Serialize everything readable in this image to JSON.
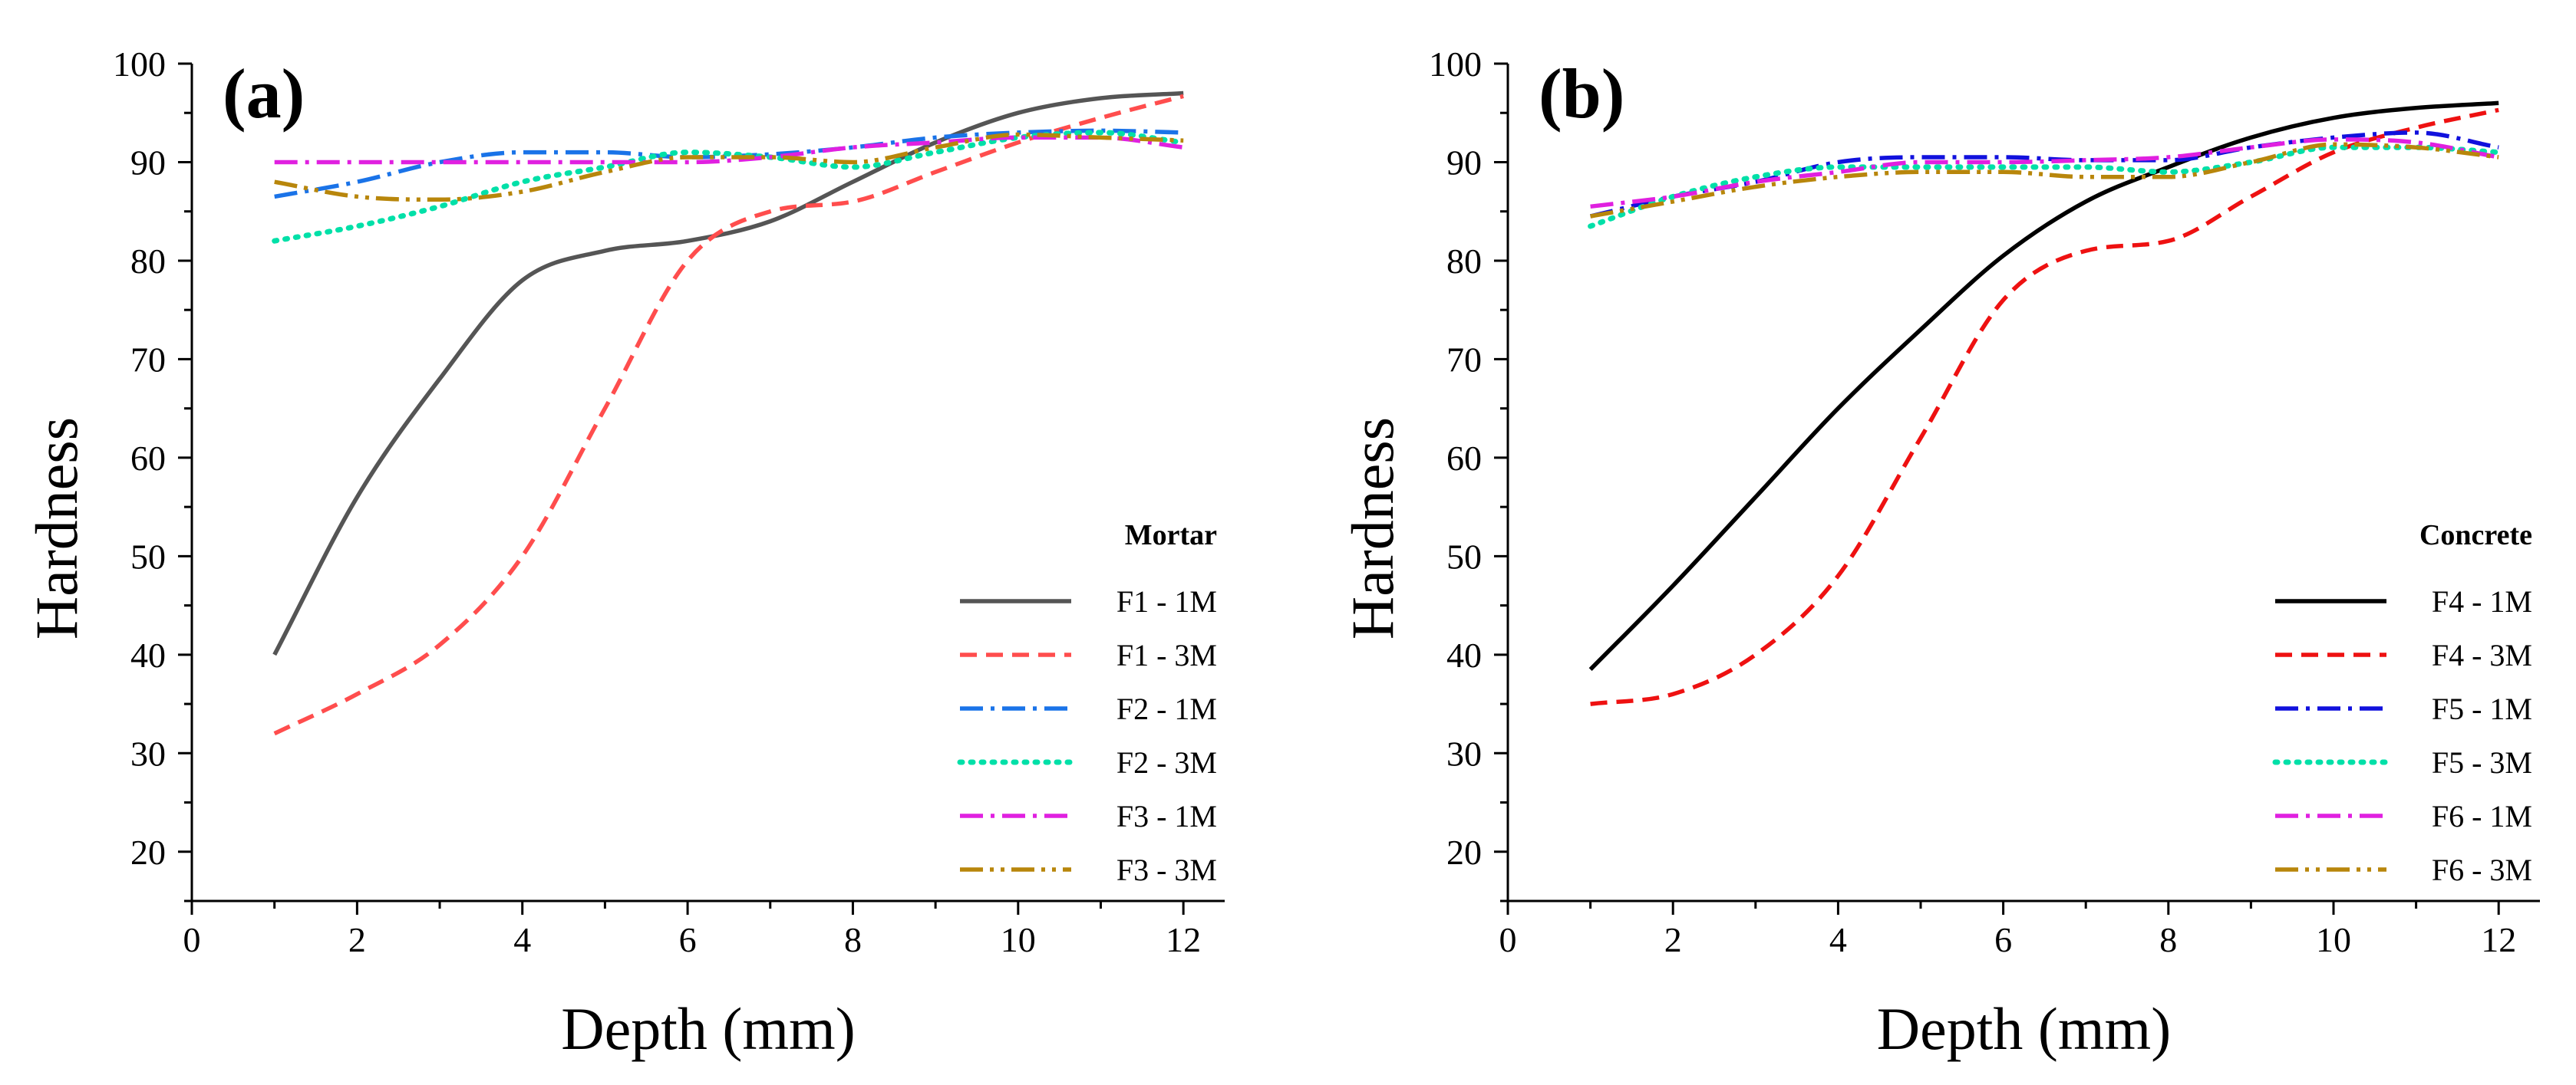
{
  "chart_data": [
    {
      "type": "line",
      "panel_label": "(a)",
      "xlabel": "Depth (mm)",
      "ylabel": "Hardness",
      "xlim": [
        0,
        12.5
      ],
      "ylim": [
        15,
        100
      ],
      "xticks": [
        0,
        2,
        4,
        6,
        8,
        10,
        12
      ],
      "yticks": [
        20,
        30,
        40,
        50,
        60,
        70,
        80,
        90,
        100
      ],
      "legend_title": "Mortar",
      "legend_position": "bottom-right",
      "series": [
        {
          "name": "F1 - 1M",
          "color": "#555555",
          "dash": "solid",
          "x": [
            1,
            2,
            3,
            4,
            5,
            6,
            7,
            8,
            9,
            10,
            11,
            12
          ],
          "y": [
            40,
            56,
            68,
            78,
            81,
            82,
            84,
            88,
            92,
            95,
            96.5,
            97
          ]
        },
        {
          "name": "F1 - 3M",
          "color": "#ff4d4d",
          "dash": "dash",
          "x": [
            1,
            2,
            3,
            4,
            5,
            6,
            7,
            8,
            9,
            10,
            11,
            12
          ],
          "y": [
            32,
            36,
            41,
            50,
            65,
            80,
            85,
            86,
            89,
            92,
            94.5,
            96.7
          ]
        },
        {
          "name": "F2 - 1M",
          "color": "#1a73e8",
          "dash": "dashdot",
          "x": [
            1,
            2,
            3,
            4,
            5,
            6,
            7,
            8,
            9,
            10,
            11,
            12
          ],
          "y": [
            86.5,
            88,
            90,
            91,
            91,
            90.5,
            90.8,
            91.5,
            92.5,
            93,
            93.2,
            93
          ]
        },
        {
          "name": "F2 - 3M",
          "color": "#00e0a8",
          "dash": "dot",
          "x": [
            1,
            2,
            3,
            4,
            5,
            6,
            7,
            8,
            9,
            10,
            11,
            12
          ],
          "y": [
            82,
            83.5,
            85.5,
            88,
            89.5,
            91,
            90.5,
            89.5,
            91,
            92.5,
            93,
            92
          ]
        },
        {
          "name": "F3 - 1M",
          "color": "#e020e0",
          "dash": "dashdot",
          "x": [
            1,
            2,
            3,
            4,
            5,
            6,
            7,
            8,
            9,
            10,
            11,
            12
          ],
          "y": [
            90,
            90,
            90,
            90,
            90,
            90,
            90.5,
            91.5,
            92,
            92.5,
            92.5,
            91.5
          ]
        },
        {
          "name": "F3 - 3M",
          "color": "#b8860b",
          "dash": "dashdotdot",
          "x": [
            1,
            2,
            3,
            4,
            5,
            6,
            7,
            8,
            9,
            10,
            11,
            12
          ],
          "y": [
            88,
            86.5,
            86.2,
            87,
            89,
            90.5,
            90.5,
            90,
            91.5,
            92.8,
            92.5,
            92.2
          ]
        }
      ]
    },
    {
      "type": "line",
      "panel_label": "(b)",
      "xlabel": "Depth (mm)",
      "ylabel": "Hardness",
      "xlim": [
        0,
        12.5
      ],
      "ylim": [
        15,
        100
      ],
      "xticks": [
        0,
        2,
        4,
        6,
        8,
        10,
        12
      ],
      "yticks": [
        20,
        30,
        40,
        50,
        60,
        70,
        80,
        90,
        100
      ],
      "legend_title": "Concrete",
      "legend_position": "bottom-right",
      "series": [
        {
          "name": "F4 - 1M",
          "color": "#000000",
          "dash": "solid",
          "x": [
            1,
            2,
            3,
            4,
            5,
            6,
            7,
            8,
            9,
            10,
            11,
            12
          ],
          "y": [
            38.5,
            47,
            56,
            65,
            73,
            80.5,
            86,
            89.5,
            92.5,
            94.5,
            95.5,
            96
          ]
        },
        {
          "name": "F4 - 3M",
          "color": "#ee1111",
          "dash": "dash",
          "x": [
            1,
            2,
            3,
            4,
            5,
            6,
            7,
            8,
            9,
            10,
            11,
            12
          ],
          "y": [
            35,
            36,
            40,
            48,
            62,
            76,
            81,
            82,
            86.5,
            91,
            93.5,
            95.3
          ]
        },
        {
          "name": "F5 - 1M",
          "color": "#1111dd",
          "dash": "dashdot",
          "x": [
            1,
            2,
            3,
            4,
            5,
            6,
            7,
            8,
            9,
            10,
            11,
            12
          ],
          "y": [
            84.5,
            86.5,
            88,
            90,
            90.5,
            90.5,
            90.2,
            90.2,
            91.5,
            92.5,
            93,
            91.5
          ]
        },
        {
          "name": "F5 - 3M",
          "color": "#00e0a8",
          "dash": "dot",
          "x": [
            1,
            2,
            3,
            4,
            5,
            6,
            7,
            8,
            9,
            10,
            11,
            12
          ],
          "y": [
            83.5,
            86.5,
            88.5,
            89.5,
            89.5,
            89.5,
            89.5,
            89,
            90,
            91.5,
            91.5,
            91
          ]
        },
        {
          "name": "F6 - 1M",
          "color": "#e020e0",
          "dash": "dashdot",
          "x": [
            1,
            2,
            3,
            4,
            5,
            6,
            7,
            8,
            9,
            10,
            11,
            12
          ],
          "y": [
            85.5,
            86.5,
            88,
            89,
            90,
            90,
            90.2,
            90.5,
            91.5,
            92.3,
            92,
            90.5
          ]
        },
        {
          "name": "F6 - 3M",
          "color": "#b8860b",
          "dash": "dashdotdot",
          "x": [
            1,
            2,
            3,
            4,
            5,
            6,
            7,
            8,
            9,
            10,
            11,
            12
          ],
          "y": [
            84.5,
            86,
            87.5,
            88.5,
            89,
            89,
            88.5,
            88.5,
            90,
            91.8,
            91.5,
            90.5
          ]
        }
      ]
    }
  ]
}
